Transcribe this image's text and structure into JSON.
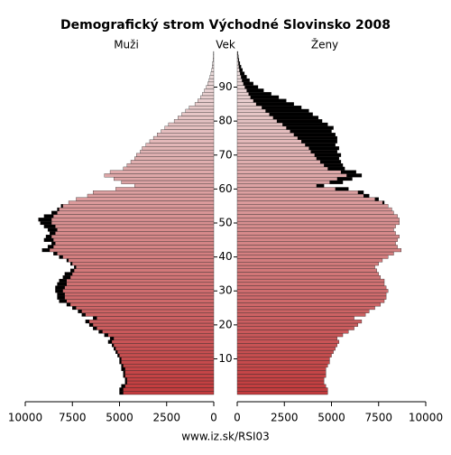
{
  "chart_data": {
    "type": "pyramid",
    "title": "Demografický strom Východné Slovinsko 2008",
    "left_label": "Muži",
    "center_label": "Vek",
    "right_label": "Ženy",
    "footer": "www.iz.sk/RSI03",
    "categories": [
      0,
      1,
      2,
      3,
      4,
      5,
      6,
      7,
      8,
      9,
      10,
      11,
      12,
      13,
      14,
      15,
      16,
      17,
      18,
      19,
      20,
      21,
      22,
      23,
      24,
      25,
      26,
      27,
      28,
      29,
      30,
      31,
      32,
      33,
      34,
      35,
      36,
      37,
      38,
      39,
      40,
      41,
      42,
      43,
      44,
      45,
      46,
      47,
      48,
      49,
      50,
      51,
      52,
      53,
      54,
      55,
      56,
      57,
      58,
      59,
      60,
      61,
      62,
      63,
      64,
      65,
      66,
      67,
      68,
      69,
      70,
      71,
      72,
      73,
      74,
      75,
      76,
      77,
      78,
      79,
      80,
      81,
      82,
      83,
      84,
      85,
      86,
      87,
      88,
      89,
      90,
      91,
      92,
      93,
      94,
      95,
      96,
      97,
      98,
      99,
      100
    ],
    "series": [
      {
        "name": "Muži",
        "values": [
          5000,
          5000,
          4900,
          4700,
          4700,
          4800,
          4800,
          4900,
          4900,
          5000,
          5000,
          5100,
          5200,
          5300,
          5400,
          5600,
          5500,
          5800,
          6100,
          6400,
          6600,
          6800,
          6400,
          7000,
          7200,
          7500,
          7800,
          8200,
          8300,
          8300,
          8400,
          8400,
          8300,
          8200,
          8000,
          7900,
          7600,
          7400,
          7600,
          7800,
          8200,
          8500,
          9100,
          8800,
          8600,
          9000,
          8900,
          8700,
          8800,
          9000,
          9200,
          9300,
          9000,
          8600,
          8300,
          8100,
          7700,
          7300,
          6700,
          6400,
          5200,
          4200,
          4900,
          5300,
          5800,
          5500,
          4800,
          4600,
          4400,
          4200,
          4100,
          3900,
          3800,
          3600,
          3400,
          3200,
          3000,
          2800,
          2600,
          2400,
          2100,
          1900,
          1700,
          1500,
          1300,
          1000,
          850,
          700,
          600,
          500,
          400,
          320,
          250,
          200,
          150,
          110,
          80,
          60,
          40,
          25,
          15
        ]
      },
      {
        "name": "Ženy",
        "values": [
          4800,
          4800,
          4700,
          4600,
          4600,
          4700,
          4700,
          4700,
          4800,
          4900,
          4900,
          5000,
          5100,
          5200,
          5300,
          5400,
          5300,
          5600,
          5900,
          6200,
          6400,
          6600,
          6200,
          6800,
          7000,
          7300,
          7600,
          7800,
          7900,
          7900,
          8000,
          7900,
          7800,
          7800,
          7600,
          7500,
          7400,
          7300,
          7500,
          7700,
          8000,
          8300,
          8700,
          8500,
          8400,
          8500,
          8600,
          8400,
          8300,
          8400,
          8600,
          8600,
          8500,
          8300,
          8200,
          8000,
          7800,
          7500,
          7000,
          6700,
          5900,
          4600,
          5600,
          6100,
          6600,
          6300,
          5700,
          5600,
          5500,
          5400,
          5500,
          5300,
          5400,
          5200,
          5300,
          5300,
          5200,
          5000,
          5100,
          4800,
          4500,
          4300,
          4000,
          3800,
          3400,
          3000,
          2600,
          2200,
          1800,
          1400,
          1100,
          850,
          650,
          500,
          380,
          280,
          200,
          140,
          90,
          60,
          40
        ]
      }
    ],
    "colors": {
      "young": "#c23b3d",
      "old": "#eee4e4",
      "excess": "#000000"
    },
    "xlim": [
      0,
      10000
    ],
    "xticks": [
      0,
      2500,
      5000,
      7500,
      10000
    ],
    "ylim": [
      -0.5,
      100.5
    ],
    "yticks": [
      10,
      20,
      30,
      40,
      50,
      60,
      70,
      80,
      90
    ]
  }
}
